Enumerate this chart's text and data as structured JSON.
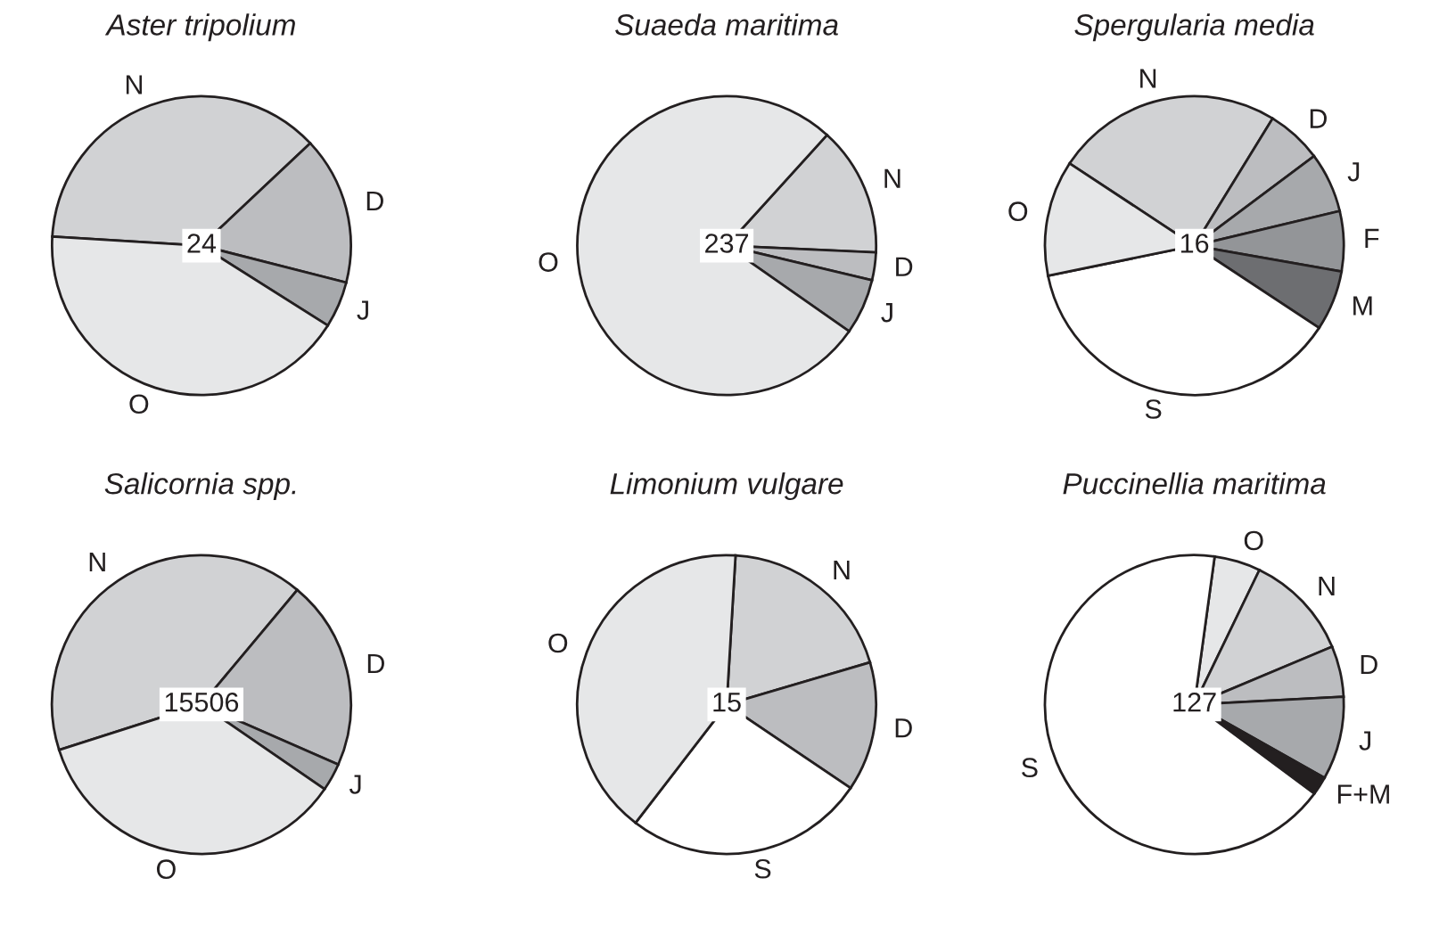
{
  "chart_data": [
    {
      "type": "pie",
      "title": "Aster tripolium",
      "categories": [
        "N",
        "D",
        "J",
        "O"
      ],
      "values": [
        37,
        16,
        5,
        42
      ],
      "colors": [
        "#d1d2d4",
        "#bcbdc0",
        "#a7a9ac",
        "#e6e7e8"
      ],
      "annotations": [
        "24"
      ]
    },
    {
      "type": "pie",
      "title": "Suaeda maritima",
      "categories": [
        "N",
        "D",
        "J",
        "O"
      ],
      "values": [
        14,
        3,
        6,
        77
      ],
      "colors": [
        "#d1d2d4",
        "#bcbdc0",
        "#a7a9ac",
        "#e6e7e8"
      ],
      "annotations": [
        "237"
      ]
    },
    {
      "type": "pie",
      "title": "Spergularia media",
      "categories": [
        "N",
        "D",
        "J",
        "F",
        "M",
        "S",
        "O"
      ],
      "values": [
        24.5,
        6,
        6.5,
        6.5,
        6.5,
        37.5,
        12.5
      ],
      "colors": [
        "#d1d2d4",
        "#bcbdc0",
        "#a7a9ac",
        "#939598",
        "#6d6e71",
        "#ffffff",
        "#e6e7e8"
      ],
      "annotations": [
        "16"
      ]
    },
    {
      "type": "pie",
      "title": "Salicornia spp.",
      "categories": [
        "N",
        "D",
        "J",
        "O"
      ],
      "values": [
        41,
        20.5,
        3,
        35.5
      ],
      "colors": [
        "#d1d2d4",
        "#bcbdc0",
        "#a7a9ac",
        "#e6e7e8"
      ],
      "annotations": [
        "15506"
      ]
    },
    {
      "type": "pie",
      "title": "Limonium vulgare",
      "categories": [
        "N",
        "D",
        "S",
        "O"
      ],
      "values": [
        19.5,
        14,
        26,
        40.5
      ],
      "colors": [
        "#d1d2d4",
        "#bcbdc0",
        "#ffffff",
        "#e6e7e8"
      ],
      "annotations": [
        "15"
      ]
    },
    {
      "type": "pie",
      "title": "Puccinellia maritima",
      "categories": [
        "O",
        "N",
        "D",
        "J",
        "F+M",
        "S"
      ],
      "values": [
        5,
        11.5,
        5.5,
        9,
        2,
        67
      ],
      "colors": [
        "#e6e7e8",
        "#d1d2d4",
        "#bcbdc0",
        "#a7a9ac",
        "#231f20",
        "#ffffff"
      ],
      "annotations": [
        "127"
      ]
    }
  ]
}
